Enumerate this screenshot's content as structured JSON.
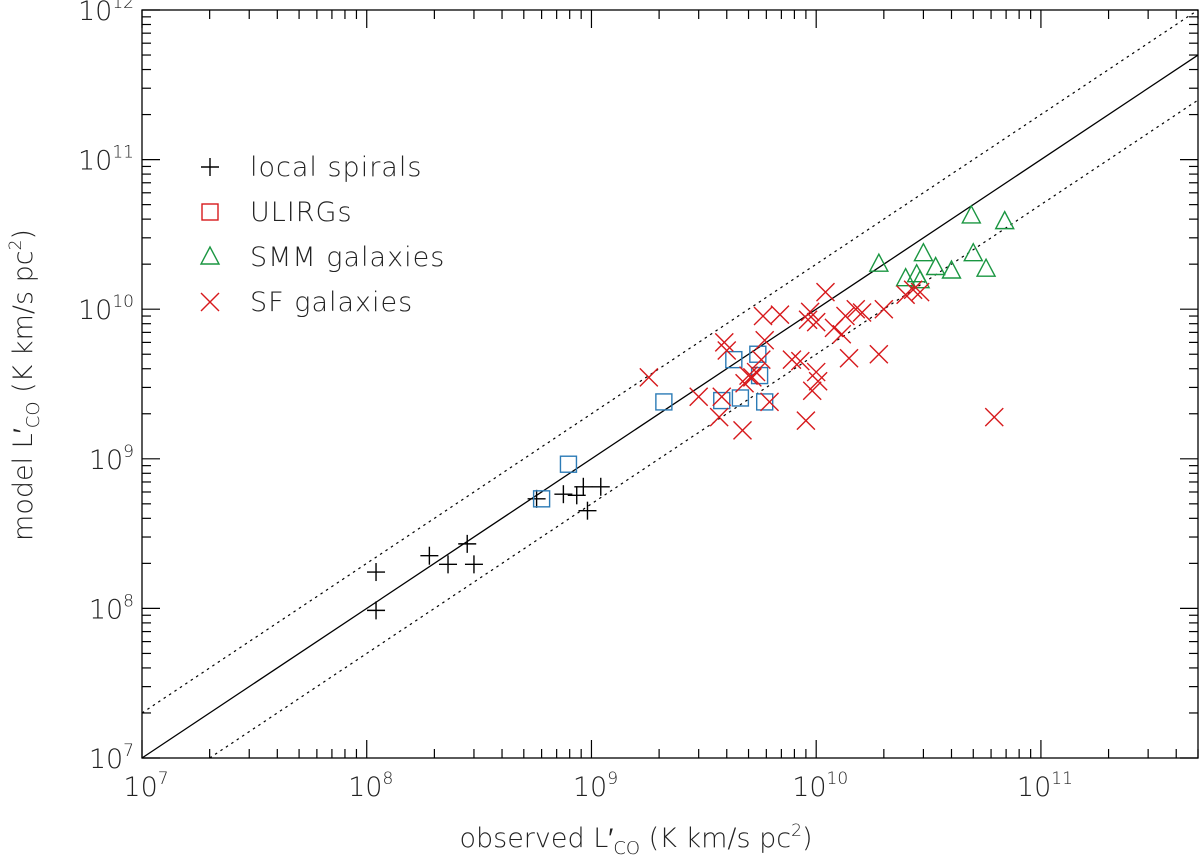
{
  "chart_data": {
    "type": "scatter",
    "xscale": "log",
    "yscale": "log",
    "xlim": [
      10000000.0,
      500000000000.0
    ],
    "ylim": [
      10000000.0,
      1000000000000.0
    ],
    "xlabel": {
      "main": "observed L",
      "prime": "′",
      "sub": "CO",
      "units": " (K km/s pc",
      "sup": "2",
      "close": ")"
    },
    "ylabel": {
      "main": "model L",
      "prime": "′",
      "sub": "CO",
      "units": " (K km/s pc",
      "sup": "2",
      "close": ")"
    },
    "x_ticks": [
      {
        "value": 10000000.0,
        "base": "10",
        "exp": "7"
      },
      {
        "value": 100000000.0,
        "base": "10",
        "exp": "8"
      },
      {
        "value": 1000000000.0,
        "base": "10",
        "exp": "9"
      },
      {
        "value": 10000000000.0,
        "base": "10",
        "exp": "10"
      },
      {
        "value": 100000000000.0,
        "base": "10",
        "exp": "11"
      }
    ],
    "y_ticks": [
      {
        "value": 10000000.0,
        "base": "10",
        "exp": "7"
      },
      {
        "value": 100000000.0,
        "base": "10",
        "exp": "8"
      },
      {
        "value": 1000000000.0,
        "base": "10",
        "exp": "9"
      },
      {
        "value": 10000000000.0,
        "base": "10",
        "exp": "10"
      },
      {
        "value": 100000000000.0,
        "base": "10",
        "exp": "11"
      },
      {
        "value": 1000000000000.0,
        "base": "10",
        "exp": "12"
      }
    ],
    "reference_lines": [
      {
        "name": "one-to-one",
        "factor": 1,
        "style": "solid"
      },
      {
        "name": "factor-2-upper",
        "factor": 2,
        "style": "dotted"
      },
      {
        "name": "factor-2-lower",
        "factor": 0.5,
        "style": "dotted"
      }
    ],
    "legend_position": "top-left",
    "series": [
      {
        "name": "local spirals",
        "marker": "plus",
        "color": "#000000",
        "points": [
          [
            110000000.0,
            175000000.0
          ],
          [
            110000000.0,
            97000000.0
          ],
          [
            190000000.0,
            225000000.0
          ],
          [
            230000000.0,
            197000000.0
          ],
          [
            280000000.0,
            270000000.0
          ],
          [
            300000000.0,
            197000000.0
          ],
          [
            570000000.0,
            540000000.0
          ],
          [
            750000000.0,
            580000000.0
          ],
          [
            860000000.0,
            570000000.0
          ],
          [
            920000000.0,
            650000000.0
          ],
          [
            960000000.0,
            450000000.0
          ],
          [
            1100000000.0,
            650000000.0
          ]
        ]
      },
      {
        "name": "ULIRGs",
        "marker": "square",
        "color": "#2c7bb6",
        "legend_color": "#d7191c",
        "points": [
          [
            600000000.0,
            540000000.0
          ],
          [
            790000000.0,
            920000000.0
          ],
          [
            2100000000.0,
            2400000000.0
          ],
          [
            3800000000.0,
            2450000000.0
          ],
          [
            4300000000.0,
            4600000000.0
          ],
          [
            4600000000.0,
            2550000000.0
          ],
          [
            5500000000.0,
            5000000000.0
          ],
          [
            5600000000.0,
            3600000000.0
          ],
          [
            5900000000.0,
            2400000000.0
          ]
        ]
      },
      {
        "name": "SMM galaxies",
        "marker": "triangle",
        "color": "#1a9641",
        "points": [
          [
            19000000000.0,
            20000000000.0
          ],
          [
            25000000000.0,
            16000000000.0
          ],
          [
            28000000000.0,
            17000000000.0
          ],
          [
            29000000000.0,
            15500000000.0
          ],
          [
            30000000000.0,
            23500000000.0
          ],
          [
            34000000000.0,
            19000000000.0
          ],
          [
            40000000000.0,
            18000000000.0
          ],
          [
            49000000000.0,
            42000000000.0
          ],
          [
            50000000000.0,
            23500000000.0
          ],
          [
            57000000000.0,
            18500000000.0
          ],
          [
            69000000000.0,
            38500000000.0
          ]
        ]
      },
      {
        "name": "SF galaxies",
        "marker": "cross",
        "color": "#d7191c",
        "points": [
          [
            1800000000.0,
            3500000000.0
          ],
          [
            3000000000.0,
            2600000000.0
          ],
          [
            3700000000.0,
            1900000000.0
          ],
          [
            3800000000.0,
            2600000000.0
          ],
          [
            3900000000.0,
            6000000000.0
          ],
          [
            4000000000.0,
            5300000000.0
          ],
          [
            4700000000.0,
            1550000000.0
          ],
          [
            4800000000.0,
            3200000000.0
          ],
          [
            5000000000.0,
            3600000000.0
          ],
          [
            5200000000.0,
            3500000000.0
          ],
          [
            5400000000.0,
            3800000000.0
          ],
          [
            5700000000.0,
            4600000000.0
          ],
          [
            5800000000.0,
            9000000000.0
          ],
          [
            5900000000.0,
            6200000000.0
          ],
          [
            6200000000.0,
            2400000000.0
          ],
          [
            6900000000.0,
            9200000000.0
          ],
          [
            7800000000.0,
            4600000000.0
          ],
          [
            8500000000.0,
            4500000000.0
          ],
          [
            9000000000.0,
            1800000000.0
          ],
          [
            9200000000.0,
            8500000000.0
          ],
          [
            9400000000.0,
            9600000000.0
          ],
          [
            9600000000.0,
            2850000000.0
          ],
          [
            10000000000.0,
            3800000000.0
          ],
          [
            10000000000.0,
            8200000000.0
          ],
          [
            10200000000.0,
            3300000000.0
          ],
          [
            11000000000.0,
            13000000000.0
          ],
          [
            12000000000.0,
            7500000000.0
          ],
          [
            13000000000.0,
            6800000000.0
          ],
          [
            13500000000.0,
            9000000000.0
          ],
          [
            14000000000.0,
            4700000000.0
          ],
          [
            15000000000.0,
            10000000000.0
          ],
          [
            16000000000.0,
            9500000000.0
          ],
          [
            19000000000.0,
            5000000000.0
          ],
          [
            20000000000.0,
            10000000000.0
          ],
          [
            25000000000.0,
            12500000000.0
          ],
          [
            27000000000.0,
            13500000000.0
          ],
          [
            29000000000.0,
            13000000000.0
          ],
          [
            62000000000.0,
            1900000000.0
          ]
        ]
      }
    ]
  }
}
